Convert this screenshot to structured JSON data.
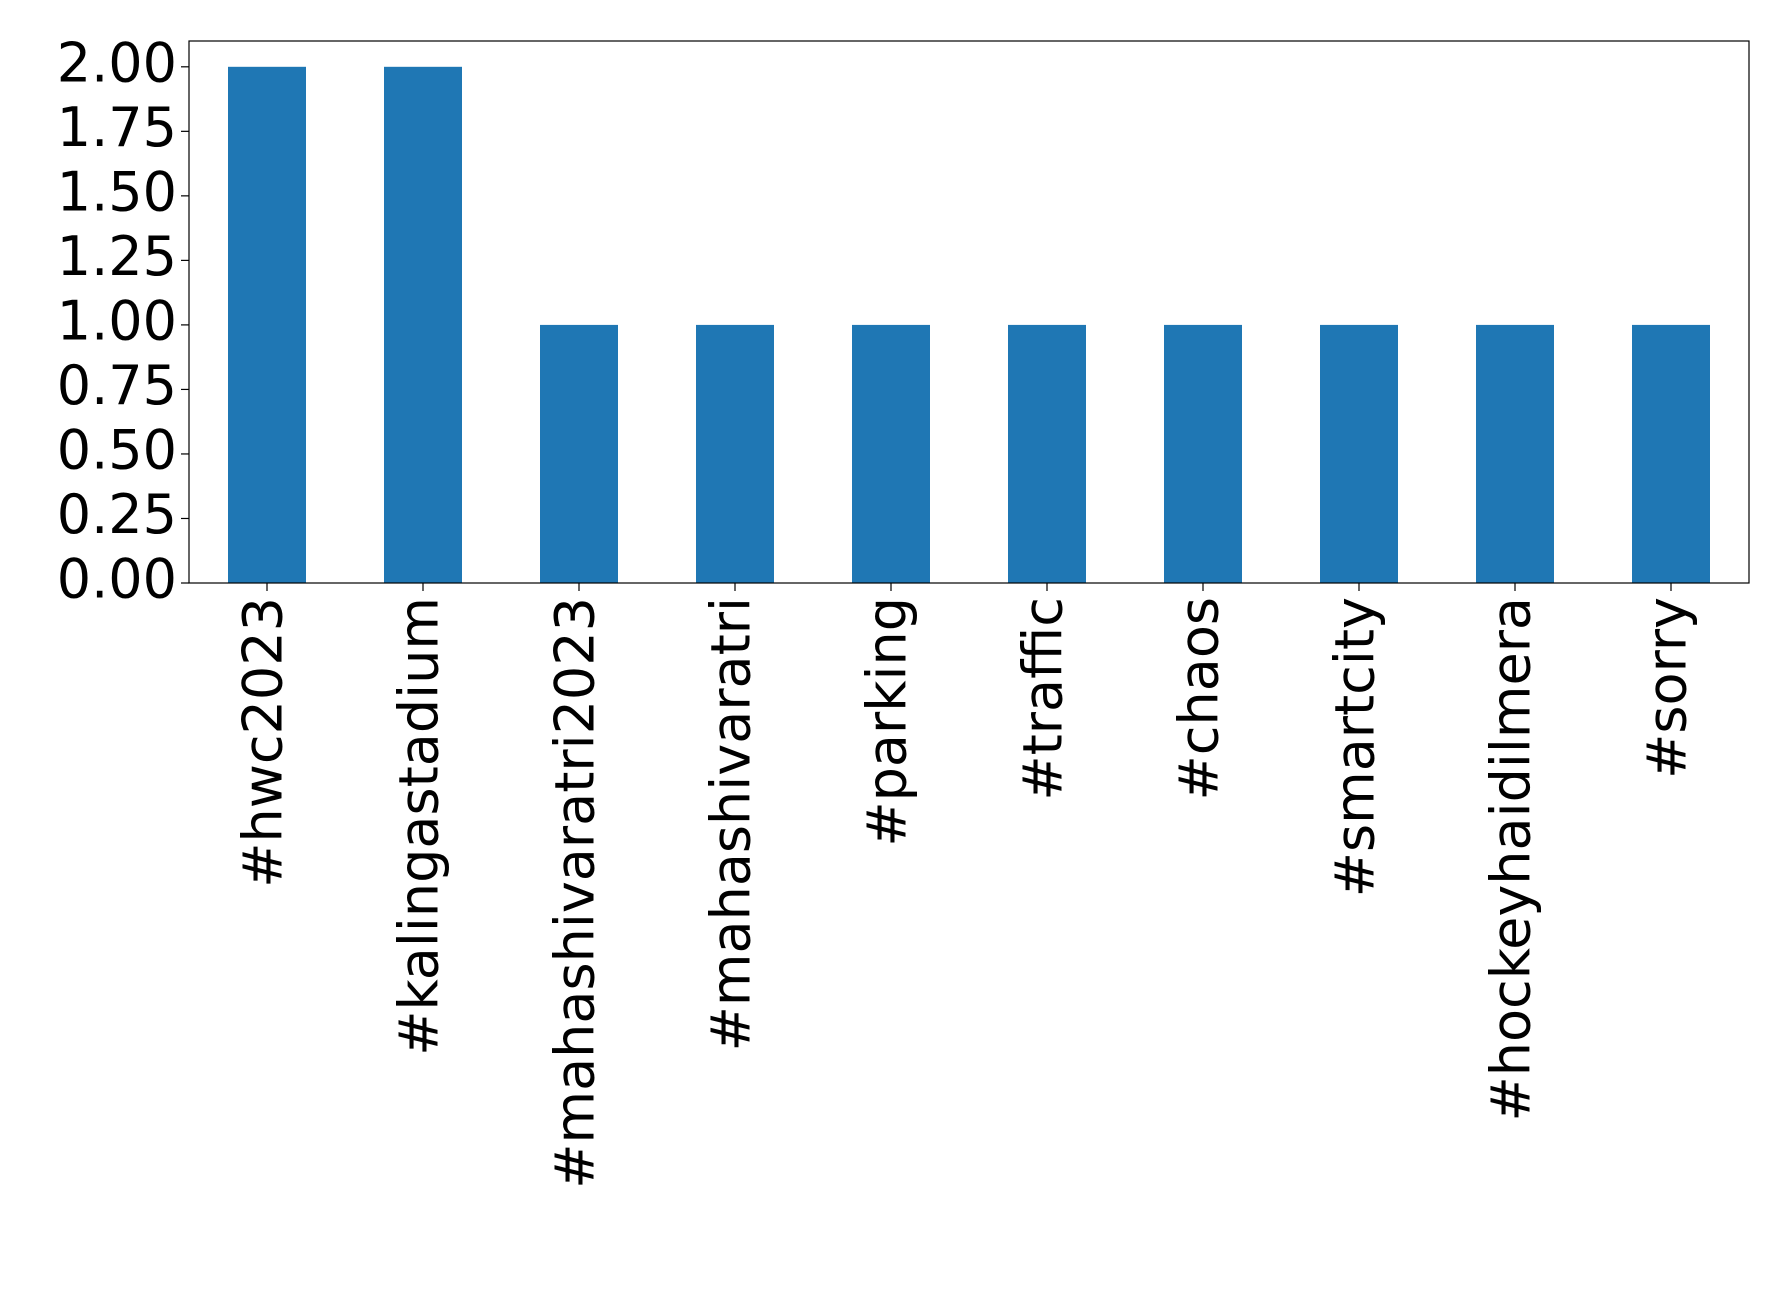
{
  "chart_data": {
    "type": "bar",
    "categories": [
      "#hwc2023",
      "#kalingastadium",
      "#mahashivaratri2023",
      "#mahashivaratri",
      "#parking",
      "#traffic",
      "#chaos",
      "#smartcity",
      "#hockeyhaidilmera",
      "#sorry"
    ],
    "values": [
      2,
      2,
      1,
      1,
      1,
      1,
      1,
      1,
      1,
      1
    ],
    "color": "#1f77b4",
    "ylim": [
      0,
      2.1
    ],
    "yticks": [
      {
        "value": 0,
        "label": "0.00"
      },
      {
        "value": 0.25,
        "label": "0.25"
      },
      {
        "value": 0.5,
        "label": "0.50"
      },
      {
        "value": 0.75,
        "label": "0.75"
      },
      {
        "value": 1,
        "label": "1.00"
      },
      {
        "value": 1.25,
        "label": "1.25"
      },
      {
        "value": 1.5,
        "label": "1.50"
      },
      {
        "value": 1.75,
        "label": "1.75"
      },
      {
        "value": 2,
        "label": "2.00"
      }
    ],
    "grid": false
  }
}
